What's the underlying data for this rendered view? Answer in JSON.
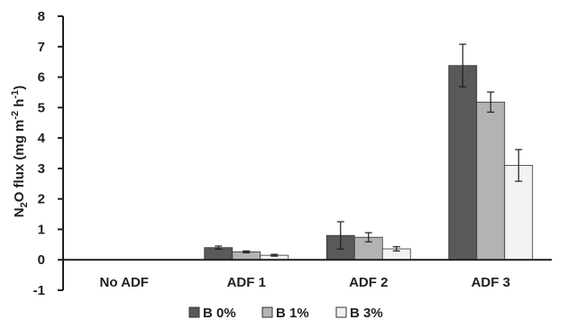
{
  "chart_data": {
    "type": "bar",
    "categories": [
      "No ADF",
      "ADF 1",
      "ADF 2",
      "ADF 3"
    ],
    "series": [
      {
        "name": "B 0%",
        "color": "#595959",
        "values": [
          0,
          0.4,
          0.8,
          6.38
        ],
        "errors": [
          0,
          0.05,
          0.45,
          0.7
        ]
      },
      {
        "name": "B 1%",
        "color": "#b3b3b3",
        "values": [
          0,
          0.26,
          0.74,
          5.18
        ],
        "errors": [
          0,
          0.03,
          0.15,
          0.33
        ]
      },
      {
        "name": "B 3%",
        "color": "#f2f2f2",
        "values": [
          0,
          0.15,
          0.36,
          3.1
        ],
        "errors": [
          0,
          0.03,
          0.07,
          0.52
        ]
      }
    ],
    "ylim": [
      -1,
      8
    ],
    "yticks": [
      "-1",
      "0",
      "1",
      "2",
      "3",
      "4",
      "5",
      "6",
      "7",
      "8"
    ],
    "ylabel": {
      "parts": [
        {
          "t": "N",
          "s": "normal"
        },
        {
          "t": "2",
          "s": "sub"
        },
        {
          "t": "O flux (mg m",
          "s": "normal"
        },
        {
          "t": "-2",
          "s": "sup"
        },
        {
          "t": " h",
          "s": "normal"
        },
        {
          "t": "-1",
          "s": "sup"
        },
        {
          "t": ")",
          "s": "normal"
        }
      ]
    },
    "xlabel": "",
    "title": "",
    "legend_position": "bottom",
    "grid": false
  }
}
